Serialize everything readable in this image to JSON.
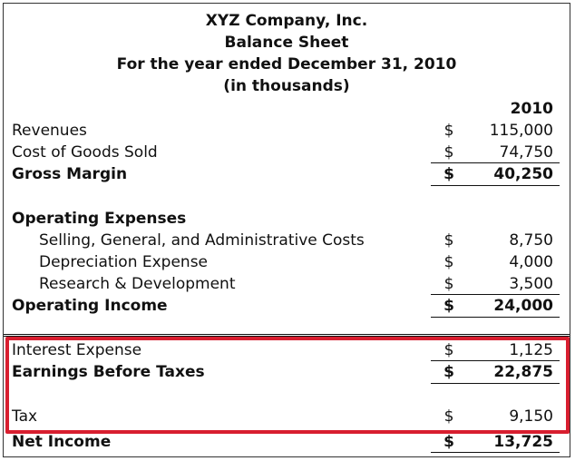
{
  "header": {
    "company": "XYZ Company, Inc.",
    "statement": "Balance Sheet",
    "period": "For the year ended December 31, 2010",
    "units": "(in thousands)"
  },
  "column_year": "2010",
  "rows": {
    "revenues": {
      "label": "Revenues",
      "currency": "$",
      "amount": "115,000"
    },
    "cogs": {
      "label": "Cost of Goods Sold",
      "currency": "$",
      "amount": "74,750"
    },
    "gross_margin": {
      "label": "Gross Margin",
      "currency": "$",
      "amount": "40,250"
    },
    "opex_heading": {
      "label": "Operating Expenses"
    },
    "sga": {
      "label": "Selling, General, and Administrative Costs",
      "currency": "$",
      "amount": "8,750"
    },
    "depreciation": {
      "label": "Depreciation Expense",
      "currency": "$",
      "amount": "4,000"
    },
    "rnd": {
      "label": "Research & Development",
      "currency": "$",
      "amount": "3,500"
    },
    "operating_income": {
      "label": "Operating Income",
      "currency": "$",
      "amount": "24,000"
    },
    "interest": {
      "label": "Interest Expense",
      "currency": "$",
      "amount": "1,125"
    },
    "ebt": {
      "label": "Earnings Before Taxes",
      "currency": "$",
      "amount": "22,875"
    },
    "tax": {
      "label": "Tax",
      "currency": "$",
      "amount": "9,150"
    },
    "net_income": {
      "label": "Net Income",
      "currency": "$",
      "amount": "13,725"
    }
  },
  "colors": {
    "highlight": "#d81e2f",
    "text": "#111111"
  }
}
